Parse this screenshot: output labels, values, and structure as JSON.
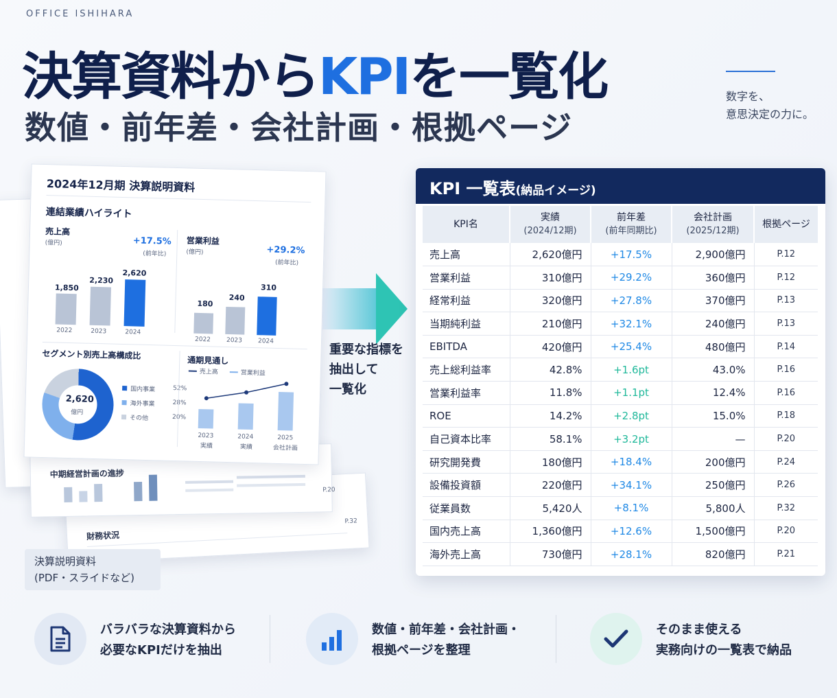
{
  "brand": "OFFICE ISHIHARA",
  "headline": {
    "part1": "決算資料から",
    "kpi": "KPI",
    "part2": "を一覧化"
  },
  "subhead": "数値・前年差・会社計画・根拠ページ",
  "tagline": {
    "line1": "数字を、",
    "line2": "意思決定の力に。"
  },
  "document": {
    "title": "2024年12月期 決算説明資料",
    "highlight_title": "連結業績ハイライト",
    "sales": {
      "label": "売上高",
      "unit": "(億円)",
      "pct": "+17.5%",
      "pct_note": "(前年比)",
      "bars": [
        {
          "year": "2022",
          "value": "1,850"
        },
        {
          "year": "2023",
          "value": "2,230"
        },
        {
          "year": "2024",
          "value": "2,620"
        }
      ]
    },
    "op_profit": {
      "label": "営業利益",
      "unit": "(億円)",
      "pct": "+29.2%",
      "pct_note": "(前年比)",
      "bars": [
        {
          "year": "2022",
          "value": "180"
        },
        {
          "year": "2023",
          "value": "240"
        },
        {
          "year": "2024",
          "value": "310"
        }
      ]
    },
    "segment": {
      "title": "セグメント別売上高構成比",
      "center_value": "2,620",
      "center_unit": "億円",
      "legend": [
        {
          "name": "国内事業",
          "pct": "52%"
        },
        {
          "name": "海外事業",
          "pct": "28%"
        },
        {
          "name": "その他",
          "pct": "20%"
        }
      ]
    },
    "outlook": {
      "title": "通期見通し",
      "legend1": "売上高",
      "legend2": "営業利益",
      "x": [
        {
          "top": "2023",
          "bottom": "実績"
        },
        {
          "top": "2024",
          "bottom": "実績"
        },
        {
          "top": "2025",
          "bottom": "会社計画"
        }
      ]
    },
    "back1_title": "中期経営計画の進捗",
    "back1_page": "P.20",
    "back2_title": "財務状況",
    "back2_page": "P.32"
  },
  "caption": {
    "line1": "決算説明資料",
    "line2": "(PDF・スライドなど)"
  },
  "arrow_text": {
    "line1": "重要な指標を",
    "line2": "抽出して",
    "line3": "一覧化"
  },
  "kpi_table": {
    "title": "KPI 一覧表",
    "title_note": "(納品イメージ)",
    "headers": [
      {
        "main": "KPI名",
        "sub": ""
      },
      {
        "main": "実績",
        "sub": "(2024/12期)"
      },
      {
        "main": "前年差",
        "sub": "(前年同期比)"
      },
      {
        "main": "会社計画",
        "sub": "(2025/12期)"
      },
      {
        "main": "根拠ページ",
        "sub": ""
      }
    ],
    "rows": [
      {
        "name": "売上高",
        "actual": "2,620億円",
        "diff": "+17.5%",
        "plan": "2,900億円",
        "page": "P.12"
      },
      {
        "name": "営業利益",
        "actual": "310億円",
        "diff": "+29.2%",
        "plan": "360億円",
        "page": "P.12"
      },
      {
        "name": "経常利益",
        "actual": "320億円",
        "diff": "+27.8%",
        "plan": "370億円",
        "page": "P.13"
      },
      {
        "name": "当期純利益",
        "actual": "210億円",
        "diff": "+32.1%",
        "plan": "240億円",
        "page": "P.13"
      },
      {
        "name": "EBITDA",
        "actual": "420億円",
        "diff": "+25.4%",
        "plan": "480億円",
        "page": "P.14"
      },
      {
        "name": "売上総利益率",
        "actual": "42.8%",
        "diff": "+1.6pt",
        "plan": "43.0%",
        "page": "P.16"
      },
      {
        "name": "営業利益率",
        "actual": "11.8%",
        "diff": "+1.1pt",
        "plan": "12.4%",
        "page": "P.16"
      },
      {
        "name": "ROE",
        "actual": "14.2%",
        "diff": "+2.8pt",
        "plan": "15.0%",
        "page": "P.18"
      },
      {
        "name": "自己資本比率",
        "actual": "58.1%",
        "diff": "+3.2pt",
        "plan": "—",
        "page": "P.20"
      },
      {
        "name": "研究開発費",
        "actual": "180億円",
        "diff": "+18.4%",
        "plan": "200億円",
        "page": "P.24"
      },
      {
        "name": "設備投資額",
        "actual": "220億円",
        "diff": "+34.1%",
        "plan": "250億円",
        "page": "P.26"
      },
      {
        "name": "従業員数",
        "actual": "5,420人",
        "diff": "+8.1%",
        "plan": "5,800人",
        "page": "P.32"
      },
      {
        "name": "国内売上高",
        "actual": "1,360億円",
        "diff": "+12.6%",
        "plan": "1,500億円",
        "page": "P.20"
      },
      {
        "name": "海外売上高",
        "actual": "730億円",
        "diff": "+28.1%",
        "plan": "820億円",
        "page": "P.21"
      }
    ]
  },
  "features": [
    {
      "icon": "document-icon",
      "line1": "バラバラな決算資料から",
      "line2": "必要なKPIだけを抽出"
    },
    {
      "icon": "bar-chart-icon",
      "line1": "数値・前年差・会社計画・",
      "line2": "根拠ページを整理"
    },
    {
      "icon": "checkmark-icon",
      "line1": "そのまま使える",
      "line2": "実務向けの一覧表で納品"
    }
  ],
  "colors": {
    "navy": "#12295e",
    "blue": "#1e6fe0",
    "teal": "#1fb89a"
  }
}
